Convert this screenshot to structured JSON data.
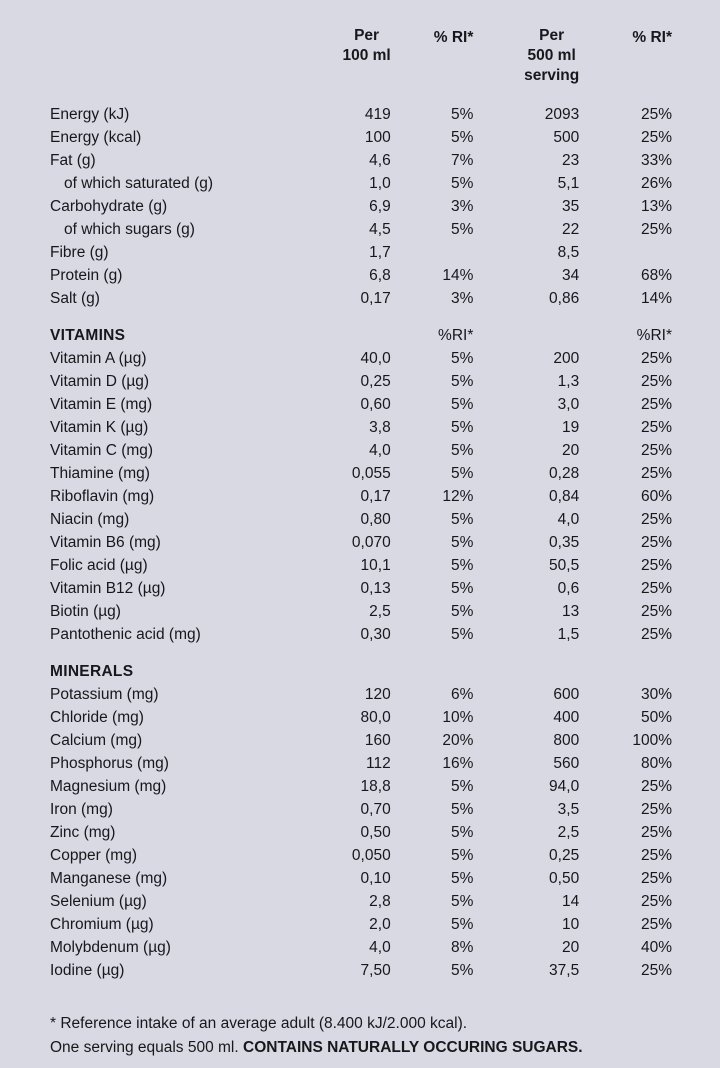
{
  "table": {
    "headers": {
      "per100": "Per\n100 ml",
      "ri1": "% RI*",
      "per500": "Per\n500 ml\nserving",
      "ri2": "% RI*"
    },
    "sections": [
      {
        "title": "",
        "sub1": "",
        "sub2": "",
        "rows": [
          {
            "label": "Energy (kJ)",
            "indent": false,
            "values": [
              "419",
              "5%",
              "2093",
              "25%"
            ]
          },
          {
            "label": "Energy (kcal)",
            "indent": false,
            "values": [
              "100",
              "5%",
              "500",
              "25%"
            ]
          },
          {
            "label": "Fat (g)",
            "indent": false,
            "values": [
              "4,6",
              "7%",
              "23",
              "33%"
            ]
          },
          {
            "label": "of which saturated (g)",
            "indent": true,
            "values": [
              "1,0",
              "5%",
              "5,1",
              "26%"
            ]
          },
          {
            "label": "Carbohydrate  (g)",
            "indent": false,
            "values": [
              "6,9",
              "3%",
              "35",
              "13%"
            ]
          },
          {
            "label": "of which sugars (g)",
            "indent": true,
            "values": [
              "4,5",
              "5%",
              "22",
              "25%"
            ]
          },
          {
            "label": "Fibre (g)",
            "indent": false,
            "values": [
              "1,7",
              "",
              "8,5",
              ""
            ]
          },
          {
            "label": "Protein (g)",
            "indent": false,
            "values": [
              "6,8",
              "14%",
              "34",
              "68%"
            ]
          },
          {
            "label": "Salt (g)",
            "indent": false,
            "values": [
              "0,17",
              "3%",
              "0,86",
              "14%"
            ]
          }
        ]
      },
      {
        "title": "VITAMINS",
        "sub1": "%RI*",
        "sub2": "%RI*",
        "rows": [
          {
            "label": "Vitamin A (µg)",
            "indent": false,
            "values": [
              "40,0",
              "5%",
              "200",
              "25%"
            ]
          },
          {
            "label": "Vitamin D (µg)",
            "indent": false,
            "values": [
              "0,25",
              "5%",
              "1,3",
              "25%"
            ]
          },
          {
            "label": "Vitamin E (mg)",
            "indent": false,
            "values": [
              "0,60",
              "5%",
              "3,0",
              "25%"
            ]
          },
          {
            "label": "Vitamin K (µg)",
            "indent": false,
            "values": [
              "3,8",
              "5%",
              "19",
              "25%"
            ]
          },
          {
            "label": "Vitamin C (mg)",
            "indent": false,
            "values": [
              "4,0",
              "5%",
              "20",
              "25%"
            ]
          },
          {
            "label": "Thiamine (mg)",
            "indent": false,
            "values": [
              "0,055",
              "5%",
              "0,28",
              "25%"
            ]
          },
          {
            "label": "Riboflavin (mg)",
            "indent": false,
            "values": [
              "0,17",
              "12%",
              "0,84",
              "60%"
            ]
          },
          {
            "label": "Niacin (mg)",
            "indent": false,
            "values": [
              "0,80",
              "5%",
              "4,0",
              "25%"
            ]
          },
          {
            "label": "Vitamin B6 (mg)",
            "indent": false,
            "values": [
              "0,070",
              "5%",
              "0,35",
              "25%"
            ]
          },
          {
            "label": "Folic acid (µg)",
            "indent": false,
            "values": [
              "10,1",
              "5%",
              "50,5",
              "25%"
            ]
          },
          {
            "label": "Vitamin B12 (µg)",
            "indent": false,
            "values": [
              "0,13",
              "5%",
              "0,6",
              "25%"
            ]
          },
          {
            "label": "Biotin (µg)",
            "indent": false,
            "values": [
              "2,5",
              "5%",
              "13",
              "25%"
            ]
          },
          {
            "label": "Pantothenic acid (mg)",
            "indent": false,
            "values": [
              "0,30",
              "5%",
              "1,5",
              "25%"
            ]
          }
        ]
      },
      {
        "title": "MINERALS",
        "sub1": "",
        "sub2": "",
        "rows": [
          {
            "label": "Potassium (mg)",
            "indent": false,
            "values": [
              "120",
              "6%",
              "600",
              "30%"
            ]
          },
          {
            "label": "Chloride (mg)",
            "indent": false,
            "values": [
              "80,0",
              "10%",
              "400",
              "50%"
            ]
          },
          {
            "label": "Calcium (mg)",
            "indent": false,
            "values": [
              "160",
              "20%",
              "800",
              "100%"
            ]
          },
          {
            "label": "Phosphorus (mg)",
            "indent": false,
            "values": [
              "112",
              "16%",
              "560",
              "80%"
            ]
          },
          {
            "label": "Magnesium (mg)",
            "indent": false,
            "values": [
              "18,8",
              "5%",
              "94,0",
              "25%"
            ]
          },
          {
            "label": "Iron (mg)",
            "indent": false,
            "values": [
              "0,70",
              "5%",
              "3,5",
              "25%"
            ]
          },
          {
            "label": "Zinc (mg)",
            "indent": false,
            "values": [
              "0,50",
              "5%",
              "2,5",
              "25%"
            ]
          },
          {
            "label": "Copper (mg)",
            "indent": false,
            "values": [
              "0,050",
              "5%",
              "0,25",
              "25%"
            ]
          },
          {
            "label": "Manganese (mg)",
            "indent": false,
            "values": [
              "0,10",
              "5%",
              "0,50",
              "25%"
            ]
          },
          {
            "label": "Selenium (µg)",
            "indent": false,
            "values": [
              "2,8",
              "5%",
              "14",
              "25%"
            ]
          },
          {
            "label": "Chromium (µg)",
            "indent": false,
            "values": [
              "2,0",
              "5%",
              "10",
              "25%"
            ]
          },
          {
            "label": "Molybdenum (µg)",
            "indent": false,
            "values": [
              "4,0",
              "8%",
              "20",
              "40%"
            ]
          },
          {
            "label": "Iodine (µg)",
            "indent": false,
            "values": [
              "7,50",
              "5%",
              "37,5",
              "25%"
            ]
          }
        ]
      }
    ]
  },
  "footer": {
    "line1": "* Reference intake of an average adult (8.400 kJ/2.000 kcal).",
    "line2_normal": "One serving equals 500 ml. ",
    "line2_bold": "CONTAINS NATURALLY OCCURING SUGARS."
  }
}
